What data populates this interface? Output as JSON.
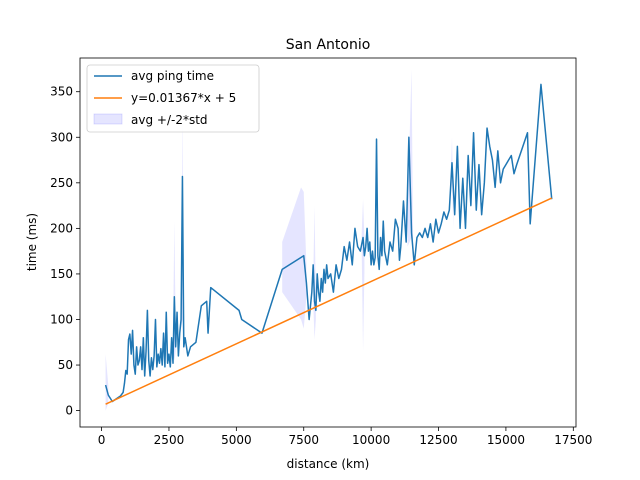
{
  "chart_data": {
    "type": "line",
    "title": "San Antonio",
    "xlabel": "distance (km)",
    "ylabel": "time (ms)",
    "xlim": [
      -800,
      17600
    ],
    "ylim": [
      -18,
      387
    ],
    "xticks": [
      0,
      2500,
      5000,
      7500,
      10000,
      12500,
      15000,
      17500
    ],
    "xtick_labels": [
      "0",
      "2500",
      "5000",
      "7500",
      "10000",
      "12500",
      "15000",
      "17500"
    ],
    "yticks": [
      0,
      50,
      100,
      150,
      200,
      250,
      300,
      350
    ],
    "ytick_labels": [
      "0",
      "50",
      "100",
      "150",
      "200",
      "250",
      "300",
      "350"
    ],
    "grid": false,
    "legend_position": "top-left",
    "series": [
      {
        "name": "avg ping time",
        "kind": "line",
        "color": "#1f77b4",
        "points": [
          [
            150,
            28
          ],
          [
            250,
            17
          ],
          [
            400,
            10
          ],
          [
            550,
            13
          ],
          [
            700,
            16
          ],
          [
            800,
            20
          ],
          [
            850,
            30
          ],
          [
            900,
            44
          ],
          [
            950,
            40
          ],
          [
            1000,
            78
          ],
          [
            1050,
            84
          ],
          [
            1100,
            62
          ],
          [
            1150,
            88
          ],
          [
            1200,
            50
          ],
          [
            1250,
            40
          ],
          [
            1300,
            70
          ],
          [
            1350,
            50
          ],
          [
            1400,
            55
          ],
          [
            1450,
            70
          ],
          [
            1500,
            45
          ],
          [
            1550,
            80
          ],
          [
            1600,
            38
          ],
          [
            1650,
            65
          ],
          [
            1700,
            110
          ],
          [
            1750,
            55
          ],
          [
            1800,
            38
          ],
          [
            1850,
            58
          ],
          [
            1900,
            45
          ],
          [
            1950,
            60
          ],
          [
            2000,
            100
          ],
          [
            2050,
            48
          ],
          [
            2100,
            62
          ],
          [
            2150,
            52
          ],
          [
            2200,
            68
          ],
          [
            2250,
            50
          ],
          [
            2300,
            85
          ],
          [
            2350,
            48
          ],
          [
            2400,
            108
          ],
          [
            2450,
            52
          ],
          [
            2500,
            62
          ],
          [
            2550,
            48
          ],
          [
            2600,
            80
          ],
          [
            2650,
            52
          ],
          [
            2700,
            125
          ],
          [
            2750,
            70
          ],
          [
            2800,
            108
          ],
          [
            2850,
            60
          ],
          [
            2900,
            85
          ],
          [
            2950,
            100
          ],
          [
            3000,
            257
          ],
          [
            3050,
            70
          ],
          [
            3100,
            80
          ],
          [
            3200,
            60
          ],
          [
            3300,
            70
          ],
          [
            3500,
            75
          ],
          [
            3700,
            115
          ],
          [
            3900,
            120
          ],
          [
            3950,
            85
          ],
          [
            4050,
            135
          ],
          [
            5100,
            110
          ],
          [
            5200,
            100
          ],
          [
            5950,
            85
          ],
          [
            6700,
            155
          ],
          [
            7500,
            170
          ],
          [
            7600,
            140
          ],
          [
            7700,
            100
          ],
          [
            7800,
            130
          ],
          [
            7850,
            160
          ],
          [
            7900,
            120
          ],
          [
            7950,
            110
          ],
          [
            8000,
            150
          ],
          [
            8050,
            130
          ],
          [
            8100,
            120
          ],
          [
            8150,
            145
          ],
          [
            8200,
            130
          ],
          [
            8250,
            155
          ],
          [
            8300,
            140
          ],
          [
            8350,
            160
          ],
          [
            8400,
            145
          ],
          [
            8500,
            150
          ],
          [
            8600,
            130
          ],
          [
            8700,
            160
          ],
          [
            8800,
            145
          ],
          [
            8900,
            155
          ],
          [
            9000,
            180
          ],
          [
            9100,
            165
          ],
          [
            9200,
            185
          ],
          [
            9300,
            160
          ],
          [
            9400,
            200
          ],
          [
            9500,
            180
          ],
          [
            9600,
            175
          ],
          [
            9700,
            190
          ],
          [
            9750,
            170
          ],
          [
            9800,
            180
          ],
          [
            9850,
            200
          ],
          [
            9900,
            175
          ],
          [
            9950,
            185
          ],
          [
            10000,
            160
          ],
          [
            10050,
            175
          ],
          [
            10100,
            160
          ],
          [
            10150,
            168
          ],
          [
            10200,
            298
          ],
          [
            10250,
            170
          ],
          [
            10300,
            155
          ],
          [
            10350,
            190
          ],
          [
            10400,
            170
          ],
          [
            10450,
            208
          ],
          [
            10500,
            175
          ],
          [
            10600,
            160
          ],
          [
            10700,
            185
          ],
          [
            10800,
            175
          ],
          [
            10900,
            210
          ],
          [
            11000,
            200
          ],
          [
            11050,
            165
          ],
          [
            11100,
            180
          ],
          [
            11200,
            230
          ],
          [
            11300,
            185
          ],
          [
            11400,
            300
          ],
          [
            11500,
            195
          ],
          [
            11600,
            160
          ],
          [
            11700,
            190
          ],
          [
            11800,
            195
          ],
          [
            11900,
            190
          ],
          [
            12000,
            200
          ],
          [
            12100,
            190
          ],
          [
            12200,
            205
          ],
          [
            12300,
            185
          ],
          [
            12400,
            210
          ],
          [
            12500,
            195
          ],
          [
            12600,
            205
          ],
          [
            12700,
            218
          ],
          [
            12800,
            210
          ],
          [
            12900,
            220
          ],
          [
            13000,
            272
          ],
          [
            13100,
            215
          ],
          [
            13200,
            290
          ],
          [
            13300,
            200
          ],
          [
            13400,
            255
          ],
          [
            13500,
            200
          ],
          [
            13600,
            280
          ],
          [
            13700,
            225
          ],
          [
            13800,
            305
          ],
          [
            13900,
            220
          ],
          [
            14000,
            270
          ],
          [
            14100,
            215
          ],
          [
            14200,
            250
          ],
          [
            14300,
            310
          ],
          [
            14400,
            290
          ],
          [
            14500,
            275
          ],
          [
            14600,
            245
          ],
          [
            14700,
            285
          ],
          [
            14800,
            250
          ],
          [
            14900,
            265
          ],
          [
            15000,
            270
          ],
          [
            15100,
            275
          ],
          [
            15200,
            280
          ],
          [
            15300,
            260
          ],
          [
            15400,
            270
          ],
          [
            15800,
            305
          ],
          [
            15900,
            205
          ],
          [
            16300,
            358
          ],
          [
            16700,
            232
          ]
        ]
      },
      {
        "name": "y=0.01367*x + 5",
        "kind": "line",
        "color": "#ff7f0e",
        "slope": 0.01367,
        "intercept": 5,
        "x_range": [
          150,
          16700
        ]
      },
      {
        "name": "avg +/-2*std",
        "kind": "band",
        "color": "#0000ff",
        "opacity": 0.1,
        "segments": [
          [
            [
              150,
              0,
              62
            ],
            [
              250,
              8,
              28
            ]
          ],
          [
            [
              2650,
              60,
              80
            ],
            [
              2700,
              55,
              208
            ],
            [
              2750,
              65,
              90
            ]
          ],
          [
            [
              2950,
              90,
              110
            ],
            [
              3000,
              100,
              330
            ],
            [
              3050,
              60,
              80
            ]
          ],
          [
            [
              6700,
              130,
              185
            ],
            [
              7400,
              100,
              245
            ],
            [
              7500,
              90,
              240
            ],
            [
              7600,
              125,
              160
            ]
          ],
          [
            [
              7850,
              120,
              140
            ],
            [
              7900,
              78,
              225
            ],
            [
              7950,
              100,
              120
            ]
          ],
          [
            [
              9650,
              175,
              195
            ],
            [
              9700,
              65,
              232
            ],
            [
              9750,
              150,
              190
            ]
          ],
          [
            [
              11350,
              180,
              220
            ],
            [
              11500,
              190,
              375
            ],
            [
              11550,
              170,
              210
            ]
          ],
          [
            [
              12950,
              235,
              255
            ],
            [
              13000,
              250,
              300
            ],
            [
              13050,
              200,
              220
            ]
          ]
        ]
      }
    ]
  }
}
